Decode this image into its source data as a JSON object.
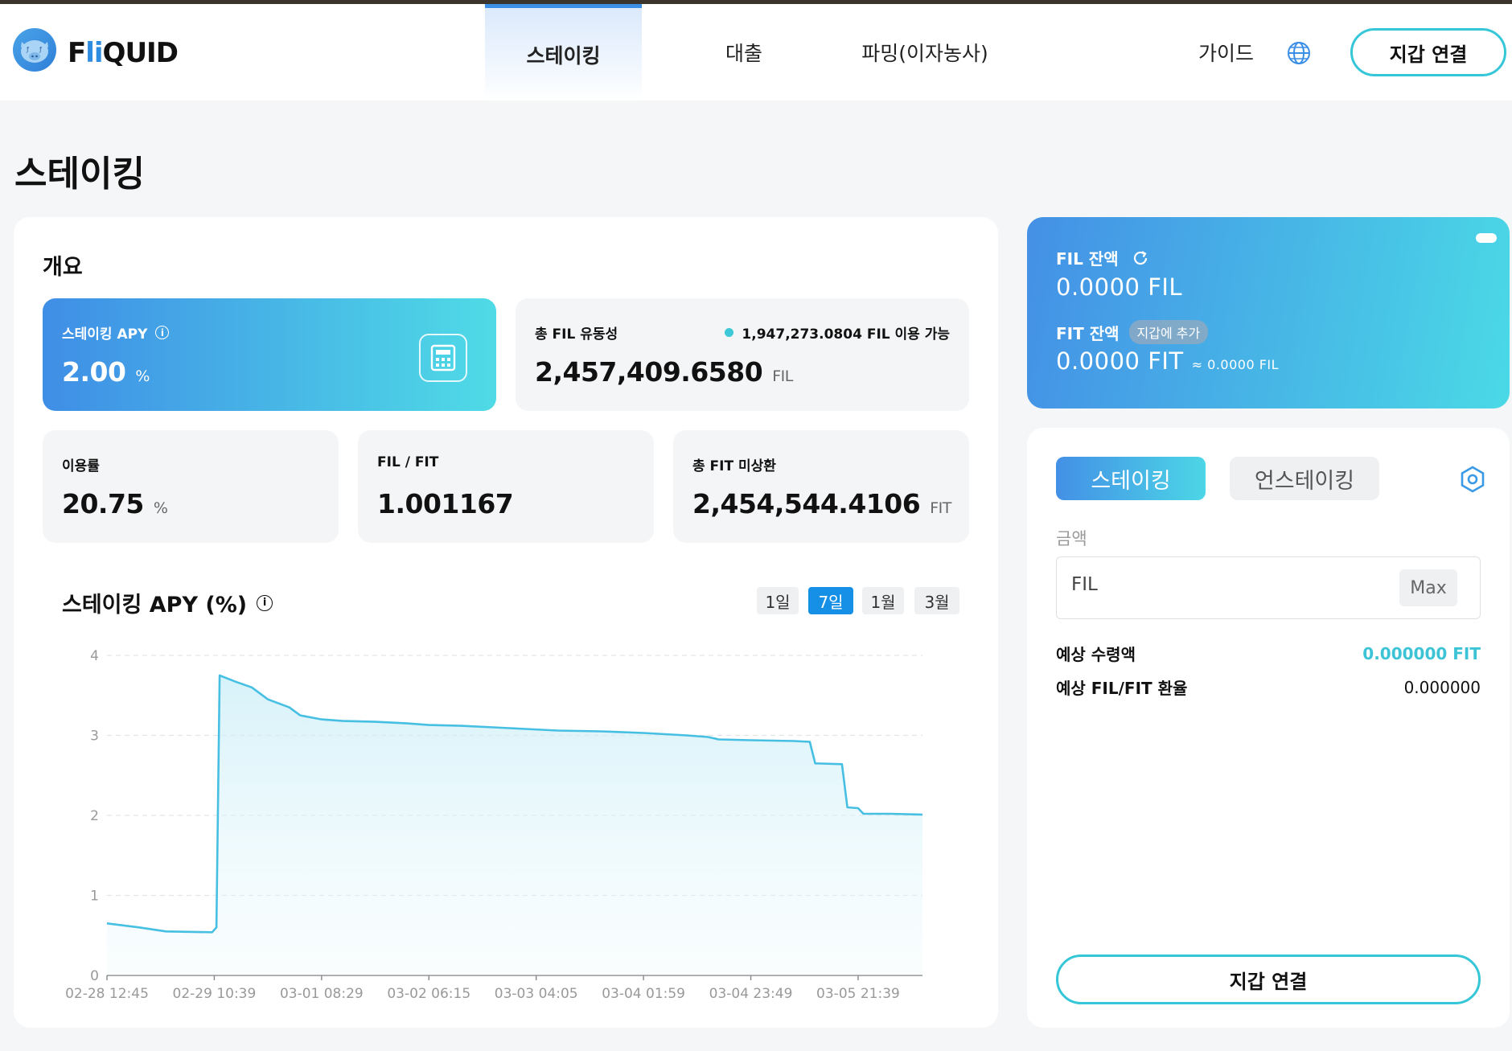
{
  "header": {
    "logo": {
      "f": "F",
      "li": "li",
      "q": "QUID"
    },
    "nav": [
      {
        "label": "스테이킹",
        "active": true
      },
      {
        "label": "대출",
        "active": false
      },
      {
        "label": "파밍(이자농사)",
        "active": false
      }
    ],
    "guide": "가이드",
    "connect_wallet": "지갑 연결"
  },
  "page_title": "스테이킹",
  "overview": {
    "title": "개요",
    "apy": {
      "label": "스테이킹 APY",
      "value": "2.00",
      "unit": "%"
    },
    "liquidity": {
      "label": "총 FIL 유동성",
      "value": "2,457,409.6580",
      "unit": "FIL",
      "available": "1,947,273.0804 FIL 이용 가능"
    },
    "utilization": {
      "label": "이용률",
      "value": "20.75",
      "unit": "%"
    },
    "rate": {
      "label": "FIL / FIT",
      "value": "1.001167"
    },
    "outstanding": {
      "label": "총 FIT 미상환",
      "value": "2,454,544.4106",
      "unit": "FIT"
    }
  },
  "chart": {
    "title": "스테이킹 APY (%)",
    "ranges": [
      {
        "label": "1일",
        "active": false
      },
      {
        "label": "7일",
        "active": true
      },
      {
        "label": "1월",
        "active": false
      },
      {
        "label": "3월",
        "active": false
      }
    ]
  },
  "chart_data": {
    "type": "area",
    "title": "스테이킹 APY (%)",
    "xlabel": "",
    "ylabel": "",
    "ylim": [
      0,
      4
    ],
    "yticks": [
      0,
      1,
      2,
      3,
      4
    ],
    "xticks": [
      "02-28 12:45",
      "02-29 10:39",
      "03-01 08:29",
      "03-02 06:15",
      "03-03 04:05",
      "03-04 01:59",
      "03-04 23:49",
      "03-05 21:39"
    ],
    "grid": true,
    "color": "#46bfe3",
    "points": [
      [
        0.0,
        0.65
      ],
      [
        0.3,
        0.6
      ],
      [
        0.55,
        0.55
      ],
      [
        0.98,
        0.54
      ],
      [
        1.02,
        0.6
      ],
      [
        1.05,
        3.75
      ],
      [
        1.2,
        3.67
      ],
      [
        1.35,
        3.6
      ],
      [
        1.5,
        3.45
      ],
      [
        1.7,
        3.35
      ],
      [
        1.8,
        3.25
      ],
      [
        2.0,
        3.2
      ],
      [
        2.2,
        3.18
      ],
      [
        2.5,
        3.17
      ],
      [
        2.8,
        3.15
      ],
      [
        3.0,
        3.13
      ],
      [
        3.3,
        3.12
      ],
      [
        3.6,
        3.1
      ],
      [
        3.9,
        3.08
      ],
      [
        4.2,
        3.06
      ],
      [
        4.6,
        3.05
      ],
      [
        5.0,
        3.03
      ],
      [
        5.4,
        3.0
      ],
      [
        5.6,
        2.98
      ],
      [
        5.7,
        2.95
      ],
      [
        6.0,
        2.94
      ],
      [
        6.4,
        2.93
      ],
      [
        6.55,
        2.92
      ],
      [
        6.6,
        2.65
      ],
      [
        6.85,
        2.64
      ],
      [
        6.9,
        2.1
      ],
      [
        7.0,
        2.09
      ],
      [
        7.05,
        2.02
      ],
      [
        7.3,
        2.02
      ],
      [
        7.6,
        2.01
      ]
    ]
  },
  "balance": {
    "fil_label": "FIL 잔액",
    "fil_value": "0.0000 FIL",
    "fit_label": "FIT 잔액",
    "add_to_wallet": "지갑에 추가",
    "fit_value": "0.0000 FIT",
    "fit_approx": "≈ 0.0000 FIL"
  },
  "stake_panel": {
    "tabs": [
      {
        "label": "스테이킹",
        "active": true
      },
      {
        "label": "언스테이킹",
        "active": false
      }
    ],
    "amount_label": "금액",
    "amount_placeholder": "FIL",
    "max_label": "Max",
    "expected_label": "예상 수령액",
    "expected_value": "0.000000 FIT",
    "rate_label": "예상 FIL/FIT 환율",
    "rate_value": "0.000000",
    "connect_wallet": "지갑 연결"
  },
  "colors": {
    "accent": "#35c6d8",
    "primary": "#3f8ee6",
    "active_range": "#1690e6"
  }
}
